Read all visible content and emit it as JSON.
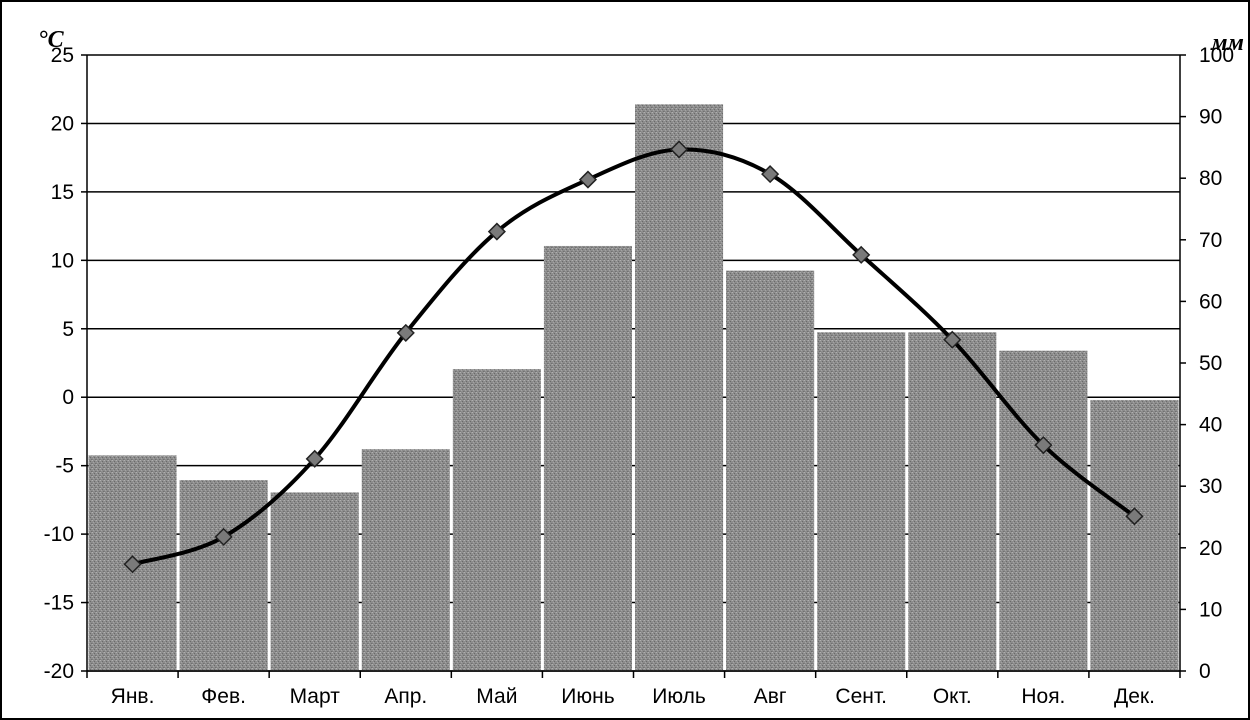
{
  "chart_data": {
    "type": "bar+line",
    "title": "",
    "categories": [
      "Янв.",
      "Фев.",
      "Март",
      "Апр.",
      "Май",
      "Июнь",
      "Июль",
      "Авг",
      "Сент.",
      "Окт.",
      "Ноя.",
      "Дек."
    ],
    "series": [
      {
        "type": "bar",
        "axis": "right",
        "values": [
          35,
          31,
          29,
          36,
          49,
          69,
          92,
          65,
          55,
          55,
          52,
          44
        ]
      },
      {
        "type": "line",
        "axis": "left",
        "smooth": true,
        "marker": "diamond",
        "values": [
          -12.2,
          -10.2,
          -4.5,
          4.7,
          12.1,
          15.9,
          18.1,
          16.3,
          10.4,
          4.2,
          -3.5,
          -8.7
        ]
      }
    ],
    "y_left": {
      "label": "°C",
      "lim": [
        -20,
        25
      ],
      "ticks": [
        "-20",
        "-15",
        "-10",
        "-5",
        "0",
        "5",
        "10",
        "15",
        "20",
        "25"
      ]
    },
    "y_right": {
      "label": "мм",
      "lim": [
        0,
        100
      ],
      "ticks": [
        "0",
        "10",
        "20",
        "30",
        "40",
        "50",
        "60",
        "70",
        "80",
        "90",
        "100"
      ]
    },
    "grid": true,
    "legend": "none",
    "colors": {
      "bars": "#8c8c8c",
      "line": "#000000",
      "markers": "#7a7a7a"
    }
  }
}
